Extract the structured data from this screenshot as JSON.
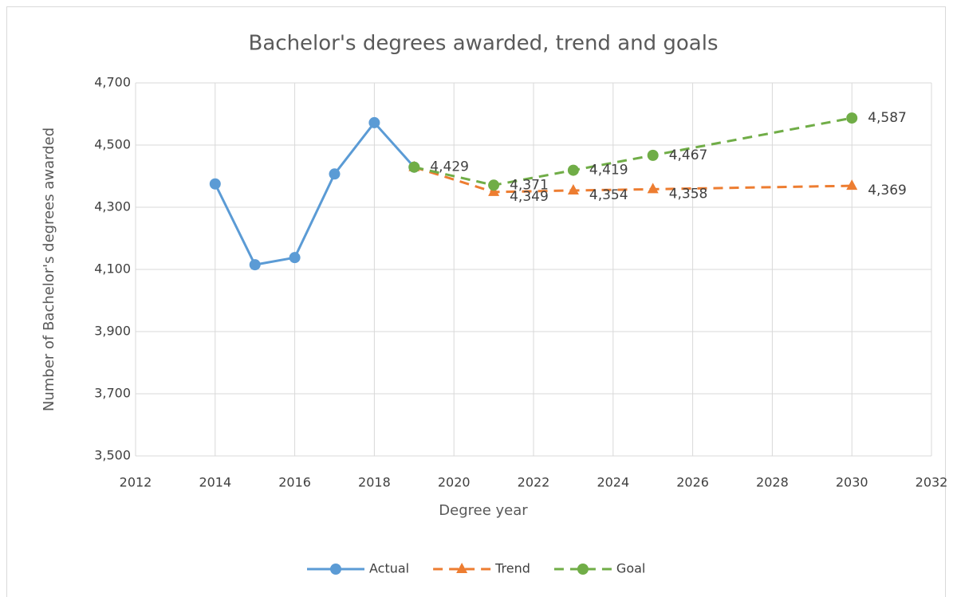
{
  "chart_data": {
    "type": "line",
    "title": "Bachelor's degrees awarded, trend and goals",
    "x_label": "Degree year",
    "y_label": "Number of Bachelor's degrees awarded",
    "x": [
      2014,
      2015,
      2016,
      2017,
      2018,
      2019,
      2021,
      2023,
      2025,
      2030
    ],
    "series": [
      {
        "name": "Actual",
        "color": "#5b9bd5",
        "line_style": "solid",
        "marker": "circle",
        "values": [
          4375,
          4115,
          4138,
          4407,
          4572,
          4429,
          null,
          null,
          null,
          null
        ]
      },
      {
        "name": "Trend",
        "color": "#ed7d31",
        "line_style": "dashed",
        "marker": "triangle",
        "values": [
          null,
          null,
          null,
          null,
          null,
          4429,
          4349,
          4354,
          4358,
          4369
        ],
        "value_labels": [
          null,
          null,
          null,
          null,
          null,
          null,
          "4,349",
          "4,354",
          "4,358",
          "4,369"
        ]
      },
      {
        "name": "Goal",
        "color": "#70ad47",
        "line_style": "dashed",
        "marker": "circle",
        "values": [
          null,
          null,
          null,
          null,
          null,
          4429,
          4371,
          4419,
          4467,
          4587
        ],
        "value_labels": [
          null,
          null,
          null,
          null,
          null,
          "4,429",
          "4,371",
          "4,419",
          "4,467",
          "4,587"
        ]
      }
    ],
    "xlim": [
      2012,
      2032
    ],
    "xticks": [
      2012,
      2014,
      2016,
      2018,
      2020,
      2022,
      2024,
      2026,
      2028,
      2030,
      2032
    ],
    "ylim": [
      3500,
      4700
    ],
    "yticks": [
      {
        "value": 3500,
        "label": "3,500"
      },
      {
        "value": 3700,
        "label": "3,700"
      },
      {
        "value": 3900,
        "label": "3,900"
      },
      {
        "value": 4100,
        "label": "4,100"
      },
      {
        "value": 4300,
        "label": "4,300"
      },
      {
        "value": 4500,
        "label": "4,500"
      },
      {
        "value": 4700,
        "label": "4,700"
      }
    ],
    "grid": true,
    "legend": "bottom"
  }
}
